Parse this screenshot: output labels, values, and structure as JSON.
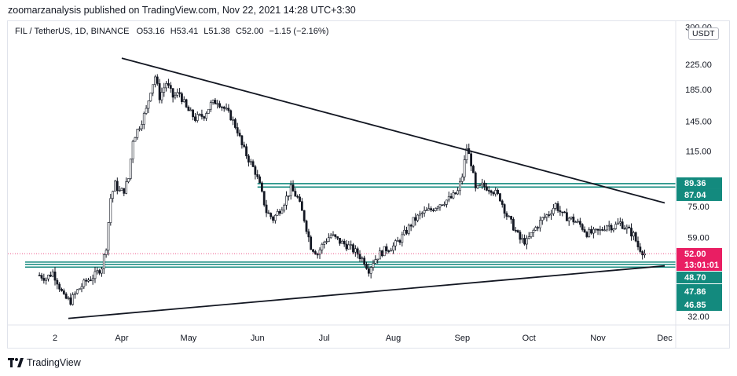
{
  "header": {
    "publisher_line": "zoomarzanalysis published on TradingView.com, Nov 22, 2021 14:28 UTC+3:30"
  },
  "symbol": {
    "name": "FIL / TetherUS, 1D, BINANCE",
    "open": "O53.16",
    "high": "H53.41",
    "low": "L51.38",
    "close": "C52.00",
    "change": "−1.15 (−2.16%)"
  },
  "currency_button": "USDT",
  "footer": {
    "brand": "TradingView"
  },
  "colors": {
    "up": "#26a69a",
    "down": "#ef5350",
    "candle_body": "#131722",
    "level": "#138a7e",
    "trendline": "#131722",
    "price_tag": "#e91e63",
    "level_tag": "#138a7e"
  },
  "chart_data": {
    "type": "candlestick",
    "y_scale": "log",
    "ylim": [
      28,
      310
    ],
    "x_ticks": [
      {
        "label": "2",
        "date": "2021-03-02"
      },
      {
        "label": "Apr",
        "date": "2021-04-01"
      },
      {
        "label": "May",
        "date": "2021-05-01"
      },
      {
        "label": "Jun",
        "date": "2021-06-01"
      },
      {
        "label": "Jul",
        "date": "2021-07-01"
      },
      {
        "label": "Aug",
        "date": "2021-08-01"
      },
      {
        "label": "Sep",
        "date": "2021-09-01"
      },
      {
        "label": "Oct",
        "date": "2021-10-01"
      },
      {
        "label": "Nov",
        "date": "2021-11-01"
      },
      {
        "label": "Dec",
        "date": "2021-12-01"
      }
    ],
    "y_ticks": [
      "300.00",
      "225.00",
      "185.00",
      "145.00",
      "115.00",
      "75.00",
      "59.00",
      "32.00"
    ],
    "price_series": [
      [
        "2021-02-23",
        44
      ],
      [
        "2021-02-26",
        43
      ],
      [
        "2021-03-01",
        45
      ],
      [
        "2021-03-03",
        42
      ],
      [
        "2021-03-06",
        37
      ],
      [
        "2021-03-09",
        36
      ],
      [
        "2021-03-12",
        39
      ],
      [
        "2021-03-16",
        42
      ],
      [
        "2021-03-20",
        44
      ],
      [
        "2021-03-23",
        47
      ],
      [
        "2021-03-25",
        55
      ],
      [
        "2021-03-27",
        80
      ],
      [
        "2021-03-29",
        89
      ],
      [
        "2021-03-31",
        84
      ],
      [
        "2021-04-02",
        85
      ],
      [
        "2021-04-04",
        93
      ],
      [
        "2021-04-06",
        126
      ],
      [
        "2021-04-09",
        140
      ],
      [
        "2021-04-12",
        158
      ],
      [
        "2021-04-14",
        185
      ],
      [
        "2021-04-16",
        205
      ],
      [
        "2021-04-18",
        175
      ],
      [
        "2021-04-21",
        195
      ],
      [
        "2021-04-24",
        175
      ],
      [
        "2021-04-27",
        180
      ],
      [
        "2021-04-30",
        160
      ],
      [
        "2021-05-04",
        148
      ],
      [
        "2021-05-08",
        152
      ],
      [
        "2021-05-11",
        165
      ],
      [
        "2021-05-14",
        170
      ],
      [
        "2021-05-17",
        160
      ],
      [
        "2021-05-20",
        150
      ],
      [
        "2021-05-23",
        135
      ],
      [
        "2021-05-25",
        120
      ],
      [
        "2021-05-28",
        108
      ],
      [
        "2021-05-31",
        98
      ],
      [
        "2021-06-02",
        88
      ],
      [
        "2021-06-05",
        72
      ],
      [
        "2021-06-08",
        68
      ],
      [
        "2021-06-12",
        75
      ],
      [
        "2021-06-16",
        86
      ],
      [
        "2021-06-19",
        80
      ],
      [
        "2021-06-22",
        68
      ],
      [
        "2021-06-25",
        55
      ],
      [
        "2021-06-28",
        52
      ],
      [
        "2021-07-01",
        57
      ],
      [
        "2021-07-04",
        60
      ],
      [
        "2021-07-08",
        57
      ],
      [
        "2021-07-12",
        55
      ],
      [
        "2021-07-16",
        52
      ],
      [
        "2021-07-19",
        49
      ],
      [
        "2021-07-21",
        46
      ],
      [
        "2021-07-23",
        49
      ],
      [
        "2021-07-26",
        52
      ],
      [
        "2021-07-29",
        54
      ],
      [
        "2021-08-01",
        55
      ],
      [
        "2021-08-04",
        58
      ],
      [
        "2021-08-07",
        62
      ],
      [
        "2021-08-10",
        67
      ],
      [
        "2021-08-14",
        71
      ],
      [
        "2021-08-18",
        73
      ],
      [
        "2021-08-21",
        76
      ],
      [
        "2021-08-24",
        78
      ],
      [
        "2021-08-27",
        80
      ],
      [
        "2021-08-30",
        84
      ],
      [
        "2021-09-01",
        95
      ],
      [
        "2021-09-03",
        118
      ],
      [
        "2021-09-05",
        105
      ],
      [
        "2021-09-07",
        85
      ],
      [
        "2021-09-10",
        88
      ],
      [
        "2021-09-14",
        86
      ],
      [
        "2021-09-18",
        80
      ],
      [
        "2021-09-21",
        70
      ],
      [
        "2021-09-24",
        64
      ],
      [
        "2021-09-27",
        58
      ],
      [
        "2021-09-30",
        57
      ],
      [
        "2021-10-03",
        62
      ],
      [
        "2021-10-07",
        68
      ],
      [
        "2021-10-10",
        71
      ],
      [
        "2021-10-13",
        76
      ],
      [
        "2021-10-16",
        70
      ],
      [
        "2021-10-20",
        68
      ],
      [
        "2021-10-24",
        65
      ],
      [
        "2021-10-27",
        61
      ],
      [
        "2021-10-30",
        61
      ],
      [
        "2021-11-02",
        62
      ],
      [
        "2021-11-05",
        65
      ],
      [
        "2021-11-08",
        64
      ],
      [
        "2021-11-11",
        66
      ],
      [
        "2021-11-14",
        63
      ],
      [
        "2021-11-17",
        60
      ],
      [
        "2021-11-19",
        55
      ],
      [
        "2021-11-21",
        53
      ],
      [
        "2021-11-22",
        52
      ]
    ],
    "last_price": {
      "label": "52.00",
      "countdown": "13:01:01"
    },
    "horizontal_levels": [
      {
        "label": "89.36",
        "value": 89.36
      },
      {
        "label": "87.04",
        "value": 87.04
      },
      {
        "label": "48.70",
        "value": 48.7
      },
      {
        "label": "47.86",
        "value": 47.86
      },
      {
        "label": "46.85",
        "value": 46.85
      }
    ],
    "trendlines": [
      {
        "name": "upper",
        "points": [
          [
            "2021-04-01",
            236
          ],
          [
            "2021-12-01",
            77
          ]
        ]
      },
      {
        "name": "lower",
        "points": [
          [
            "2021-03-08",
            31.5
          ],
          [
            "2021-12-01",
            47.3
          ]
        ]
      }
    ]
  }
}
